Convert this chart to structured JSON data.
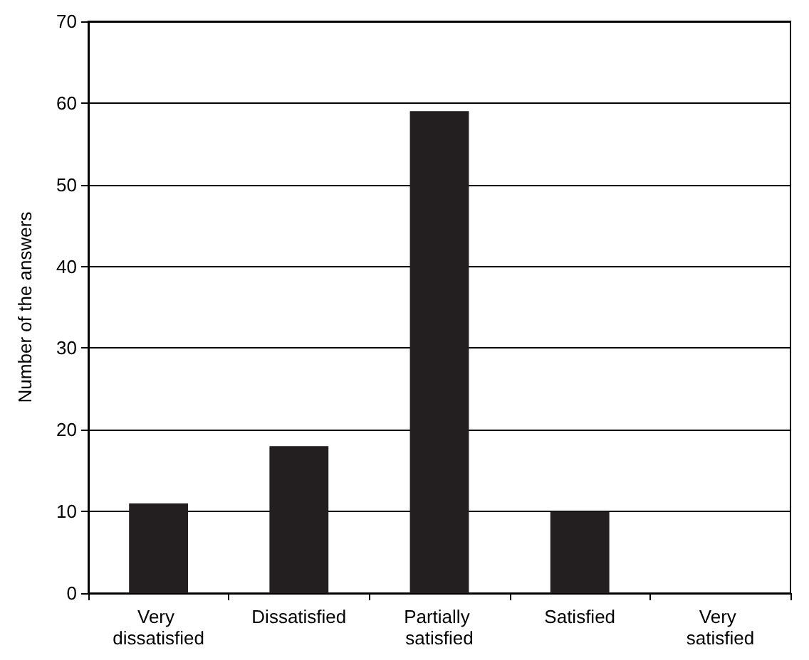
{
  "chart_data": {
    "type": "bar",
    "ylabel": "Number of the answers",
    "categories": [
      "Very dissatisfied",
      "Dissatisfied",
      "Partially satisfied",
      "Satisfied",
      "Very satisfied"
    ],
    "values": [
      11,
      18,
      59,
      10,
      0
    ],
    "color": "#231f20",
    "ylim": [
      0,
      70
    ],
    "yticks": [
      0,
      10,
      20,
      30,
      40,
      50,
      60,
      70
    ],
    "grid": "y"
  }
}
